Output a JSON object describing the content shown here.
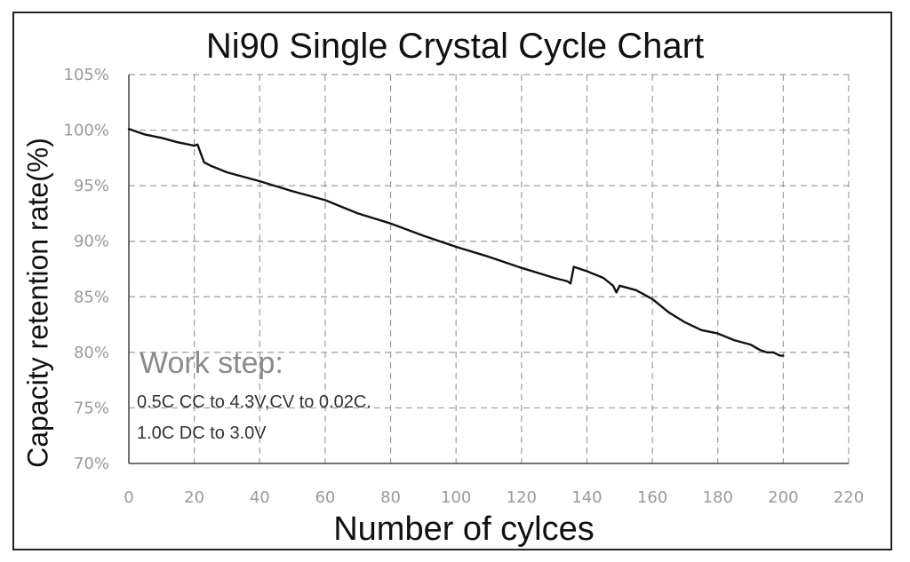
{
  "chart_data": {
    "type": "line",
    "title": "Ni90 Single Crystal Cycle Chart",
    "xlabel": "Number of cylces",
    "ylabel": "Capacity retention rate(%)",
    "xlim": [
      0,
      220
    ],
    "ylim": [
      70,
      105
    ],
    "x_ticks": [
      "0",
      "20",
      "40",
      "60",
      "80",
      "100",
      "120",
      "140",
      "160",
      "180",
      "200",
      "220"
    ],
    "y_ticks": [
      "70%",
      "75%",
      "80%",
      "85%",
      "90%",
      "95%",
      "100%",
      "105%"
    ],
    "grid": true,
    "grid_style": "dashed",
    "line_color": "#111111",
    "series": [
      {
        "x": [
          0,
          5,
          10,
          15,
          20,
          21,
          22,
          23,
          25,
          30,
          40,
          50,
          60,
          70,
          80,
          90,
          100,
          110,
          120,
          130,
          134,
          135,
          136,
          140,
          145,
          148,
          149,
          150,
          155,
          160,
          165,
          170,
          175,
          180,
          185,
          190,
          193,
          195,
          197,
          199,
          200
        ],
        "y": [
          100.1,
          99.6,
          99.3,
          98.9,
          98.6,
          98.7,
          97.9,
          97.1,
          96.8,
          96.2,
          95.4,
          94.5,
          93.7,
          92.5,
          91.6,
          90.5,
          89.5,
          88.6,
          87.6,
          86.7,
          86.4,
          86.2,
          87.7,
          87.3,
          86.7,
          86.0,
          85.4,
          86.0,
          85.6,
          84.8,
          83.6,
          82.7,
          82.0,
          81.7,
          81.1,
          80.7,
          80.2,
          80.0,
          80.0,
          79.7,
          79.7
        ]
      }
    ],
    "annotation": {
      "heading": "Work step:",
      "lines": [
        "0.5C CC to 4.3V,CV to 0.02C.",
        "1.0C DC to 3.0V"
      ]
    }
  }
}
